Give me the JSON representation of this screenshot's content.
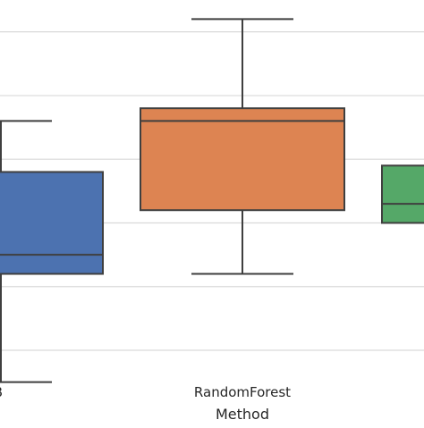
{
  "chart_data": {
    "type": "box",
    "xlabel": "Method",
    "ylabel": "",
    "title": "",
    "grid": true,
    "ylim": [
      -0.115,
      0.55
    ],
    "visible_tick_labels": [
      "B",
      "RandomForest"
    ],
    "colors": {
      "grid": "#d9d9d9",
      "outline": "#3f3f3f",
      "text": "#262626"
    },
    "boxes": [
      {
        "category": "B",
        "color": "#4c72b0",
        "whisker_low": -0.05,
        "q1": 0.12,
        "median": 0.15,
        "q3": 0.28,
        "whisker_high": 0.36
      },
      {
        "category": "RandomForest",
        "color": "#dd8452",
        "whisker_low": 0.12,
        "q1": 0.22,
        "median": 0.36,
        "q3": 0.38,
        "whisker_high": 0.52
      },
      {
        "category": "",
        "color": "#55a868",
        "whisker_low": null,
        "q1": 0.2,
        "median": 0.23,
        "q3": 0.29,
        "whisker_high": null
      }
    ]
  }
}
